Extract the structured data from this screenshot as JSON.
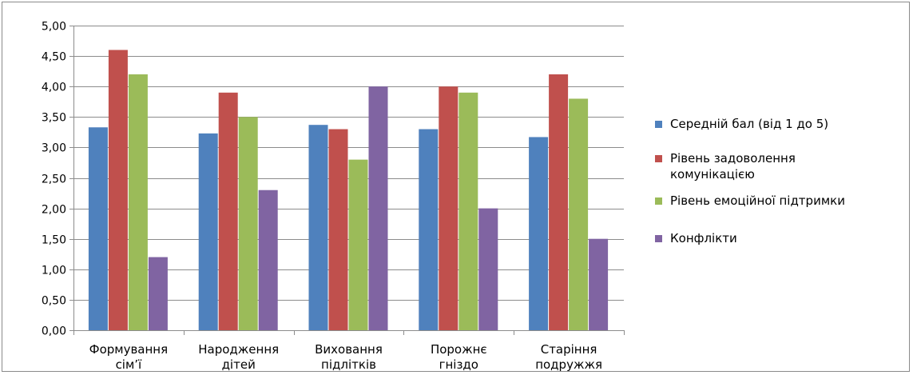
{
  "chart_data": {
    "type": "bar",
    "categories": [
      [
        "Формування",
        "сім’ї"
      ],
      [
        "Народження",
        "дітей"
      ],
      [
        "Виховання",
        "підлітків"
      ],
      [
        "Порожнє",
        "гніздо"
      ],
      [
        "Старіння",
        "подружжя"
      ]
    ],
    "series": [
      {
        "name": "Середній бал (від 1 до 5)",
        "legend_lines": [
          "Середній бал (від 1 до 5)"
        ],
        "color": "#4F81BD",
        "values": [
          3.33,
          3.23,
          3.37,
          3.3,
          3.17
        ]
      },
      {
        "name": "Рівень задоволення комунікацією",
        "legend_lines": [
          "Рівень задоволення",
          "комунікацією"
        ],
        "color": "#C0504D",
        "values": [
          4.6,
          3.9,
          3.3,
          4.0,
          4.2
        ]
      },
      {
        "name": "Рівень емоційної підтримки",
        "legend_lines": [
          "Рівень емоційної підтримки"
        ],
        "color": "#9BBB59",
        "values": [
          4.2,
          3.5,
          2.8,
          3.9,
          3.8
        ]
      },
      {
        "name": "Конфлікти",
        "legend_lines": [
          "Конфлікти"
        ],
        "color": "#8064A2",
        "values": [
          1.2,
          2.3,
          4.0,
          2.0,
          1.5
        ]
      }
    ],
    "ylim": [
      0,
      5
    ],
    "ytick_step": 0.5,
    "ytick_labels": [
      "0,00",
      "0,50",
      "1,00",
      "1,50",
      "2,00",
      "2,50",
      "3,00",
      "3,50",
      "4,00",
      "4,50",
      "5,00"
    ],
    "grid": true,
    "legend_position": "right",
    "title": "",
    "xlabel": "",
    "ylabel": ""
  }
}
